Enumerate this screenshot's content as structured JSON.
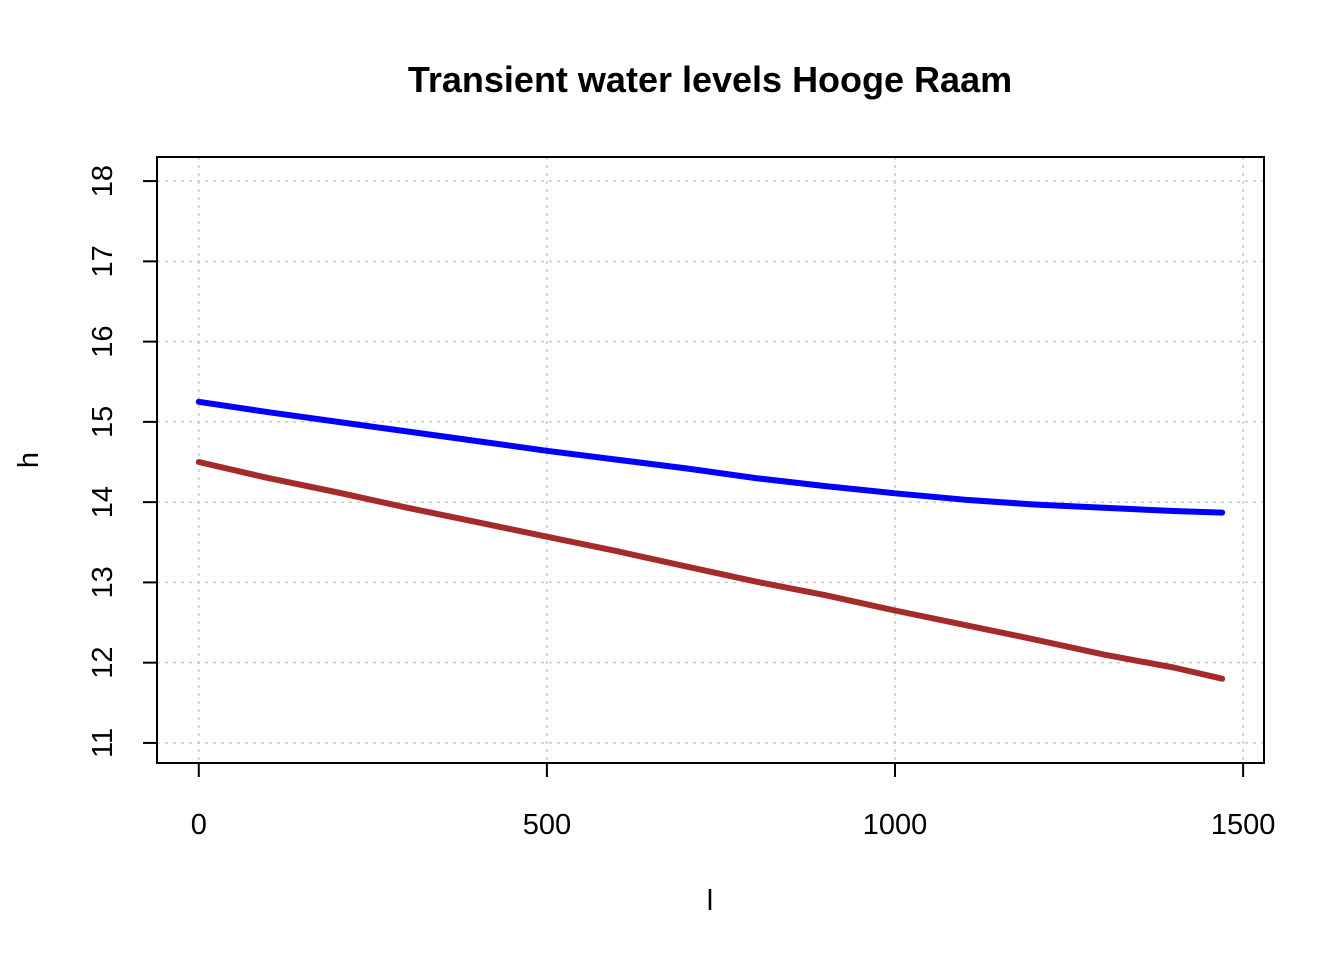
{
  "chart_data": {
    "type": "line",
    "title": "Transient water levels Hooge Raam",
    "subtitle": "",
    "xlabel": "l",
    "ylabel": "h",
    "xlim": [
      -60,
      1530
    ],
    "ylim": [
      10.75,
      18.3
    ],
    "xticks": [
      0,
      500,
      1000,
      1500
    ],
    "yticks": [
      11,
      12,
      13,
      14,
      15,
      16,
      17,
      18
    ],
    "grid": true,
    "legend": "none",
    "series": [
      {
        "color": "#0000ff",
        "x": [
          0,
          100,
          200,
          300,
          400,
          500,
          600,
          700,
          800,
          900,
          1000,
          1100,
          1200,
          1300,
          1400,
          1470
        ],
        "y": [
          15.25,
          15.12,
          15.0,
          14.88,
          14.76,
          14.64,
          14.53,
          14.42,
          14.3,
          14.2,
          14.11,
          14.03,
          13.97,
          13.93,
          13.89,
          13.87
        ]
      },
      {
        "color": "#a52a2a",
        "x": [
          0,
          100,
          200,
          300,
          400,
          500,
          600,
          700,
          800,
          900,
          1000,
          1100,
          1200,
          1300,
          1400,
          1470
        ],
        "y": [
          14.5,
          14.3,
          14.12,
          13.93,
          13.75,
          13.57,
          13.39,
          13.2,
          13.01,
          12.84,
          12.65,
          12.47,
          12.29,
          12.1,
          11.94,
          11.8
        ]
      }
    ]
  }
}
